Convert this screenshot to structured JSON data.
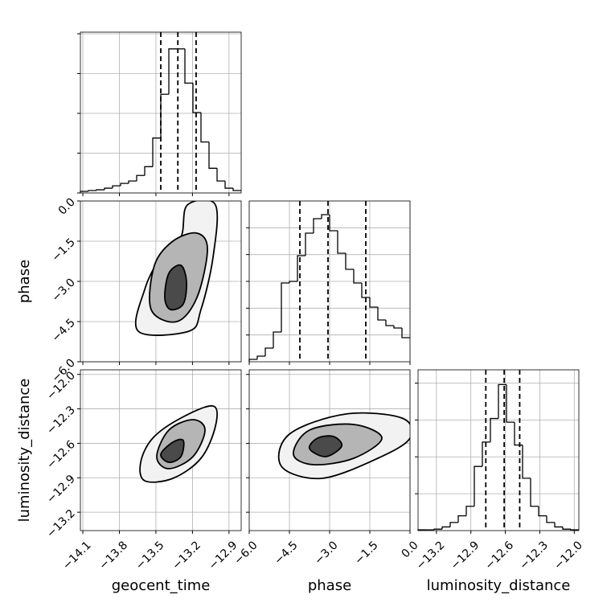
{
  "chart_data": {
    "type": "corner",
    "grid": true,
    "line_color": "#000000",
    "grid_color": "#b0b0b0",
    "contour_fills": [
      "#f2f2f2",
      "#b5b5b5",
      "#4a4a4a"
    ],
    "parameters": [
      {
        "name": "geocent_time",
        "lim": [
          -14.12,
          -12.8
        ],
        "ticks": [
          {
            "value": -14.1,
            "label": "−14.1"
          },
          {
            "value": -13.8,
            "label": "−13.8"
          },
          {
            "value": -13.5,
            "label": "−13.5"
          },
          {
            "value": -13.2,
            "label": "−13.2"
          },
          {
            "value": -12.9,
            "label": "−12.9"
          }
        ],
        "quantiles": [
          -13.46,
          -13.32,
          -13.17
        ],
        "hist": {
          "bins": [
            -14.12,
            -14.054,
            -13.988,
            -13.922,
            -13.856,
            -13.79,
            -13.724,
            -13.658,
            -13.592,
            -13.526,
            -13.46,
            -13.394,
            -13.328,
            -13.262,
            -13.196,
            -13.13,
            -13.064,
            -12.998,
            -12.932,
            -12.866,
            -12.8
          ],
          "counts": [
            10,
            15,
            20,
            30,
            45,
            60,
            75,
            110,
            165,
            345,
            620,
            905,
            905,
            690,
            505,
            320,
            155,
            75,
            30,
            15
          ],
          "ylim": [
            0,
            1010
          ],
          "yticks": [
            0,
            250,
            500,
            750,
            1000
          ]
        }
      },
      {
        "name": "phase",
        "lim": [
          -6,
          0
        ],
        "ticks": [
          {
            "value": -6,
            "label": "−6.0"
          },
          {
            "value": -4.5,
            "label": "−4.5"
          },
          {
            "value": -3,
            "label": "−3.0"
          },
          {
            "value": -1.5,
            "label": "−1.5"
          },
          {
            "value": 0,
            "label": "0.0"
          }
        ],
        "quantiles": [
          -4.11,
          -3.06,
          -1.65
        ],
        "hist": {
          "bins": [
            -6,
            -5.7,
            -5.4,
            -5.1,
            -4.8,
            -4.5,
            -4.2,
            -3.9,
            -3.6,
            -3.3,
            -3,
            -2.7,
            -2.4,
            -2.1,
            -1.8,
            -1.5,
            -1.2,
            -0.9,
            -0.6,
            -0.3,
            0
          ],
          "counts": [
            9,
            21,
            51,
            111,
            294,
            300,
            396,
            480,
            534,
            549,
            489,
            405,
            345,
            294,
            240,
            204,
            156,
            135,
            126,
            90
          ],
          "ylim": [
            0,
            600
          ],
          "yticks": [
            100,
            200,
            300,
            400,
            500
          ]
        }
      },
      {
        "name": "luminosity_distance",
        "lim": [
          -13.36,
          -11.96
        ],
        "ticks": [
          {
            "value": -13.2,
            "label": "−13.2"
          },
          {
            "value": -12.9,
            "label": "−12.9"
          },
          {
            "value": -12.6,
            "label": "−12.6"
          },
          {
            "value": -12.3,
            "label": "−12.3"
          },
          {
            "value": -12,
            "label": "−12.0"
          }
        ],
        "quantiles": [
          -12.77,
          -12.61,
          -12.475
        ],
        "hist": {
          "bins": [
            -13.36,
            -13.29,
            -13.22,
            -13.15,
            -13.08,
            -13.01,
            -12.94,
            -12.87,
            -12.8,
            -12.73,
            -12.66,
            -12.59,
            -12.52,
            -12.45,
            -12.38,
            -12.31,
            -12.24,
            -12.17,
            -12.1,
            -12.03,
            -11.96
          ],
          "counts": [
            5,
            5,
            10,
            25,
            55,
            100,
            165,
            435,
            600,
            760,
            990,
            735,
            580,
            355,
            165,
            100,
            55,
            25,
            10,
            5
          ],
          "ylim": [
            0,
            1090
          ],
          "yticks": [
            250,
            500,
            750,
            1000
          ]
        }
      }
    ],
    "pairs": [
      {
        "contours": [
          {
            "x": [
              -13.645,
              -13.592,
              -13.46,
              -13.295,
              -13.242,
              -13.011,
              -13.031,
              -13.13,
              -13.229
            ],
            "y": [
              -4.86,
              -3.3,
              -2.1,
              -1.35,
              -0.15,
              -0.15,
              -2.1,
              -4.05,
              -4.86
            ]
          },
          {
            "x": [
              -13.539,
              -13.512,
              -13.361,
              -13.163,
              -13.077,
              -13.163,
              -13.328
            ],
            "y": [
              -4.05,
              -2.4,
              -1.5,
              -1.2,
              -1.8,
              -3.6,
              -4.5
            ]
          },
          {
            "x": [
              -13.427,
              -13.394,
              -13.295,
              -13.249,
              -13.275,
              -13.381
            ],
            "y": [
              -3.6,
              -2.7,
              -2.4,
              -3.0,
              -3.84,
              -4.05
            ]
          }
        ]
      },
      {
        "contours": [
          {
            "x": [
              -13.625,
              -13.526,
              -13.295,
              -13.031,
              -13.011,
              -13.13,
              -13.361,
              -13.592
            ],
            "y": [
              -12.765,
              -12.555,
              -12.38,
              -12.275,
              -12.45,
              -12.73,
              -12.905,
              -12.926
            ]
          },
          {
            "x": [
              -13.493,
              -13.394,
              -13.196,
              -13.097,
              -13.196,
              -13.394
            ],
            "y": [
              -12.716,
              -12.485,
              -12.394,
              -12.485,
              -12.716,
              -12.821
            ]
          },
          {
            "x": [
              -13.46,
              -13.361,
              -13.275,
              -13.295,
              -13.394
            ],
            "y": [
              -12.695,
              -12.59,
              -12.576,
              -12.716,
              -12.765
            ]
          }
        ]
      },
      {
        "contours": [
          {
            "x": [
              -4.8,
              -4.5,
              -2.4,
              -0.3,
              0,
              -1.2,
              -3.3
            ],
            "y": [
              -12.8,
              -12.52,
              -12.345,
              -12.38,
              -12.555,
              -12.73,
              -12.905
            ]
          },
          {
            "x": [
              -4.35,
              -3.75,
              -2.1,
              -1.05,
              -2.1,
              -3.6
            ],
            "y": [
              -12.695,
              -12.485,
              -12.436,
              -12.555,
              -12.73,
              -12.786
            ]
          },
          {
            "x": [
              -3.75,
              -3.45,
              -2.85,
              -2.55,
              -3.15
            ],
            "y": [
              -12.646,
              -12.555,
              -12.541,
              -12.625,
              -12.716
            ]
          }
        ]
      }
    ]
  }
}
